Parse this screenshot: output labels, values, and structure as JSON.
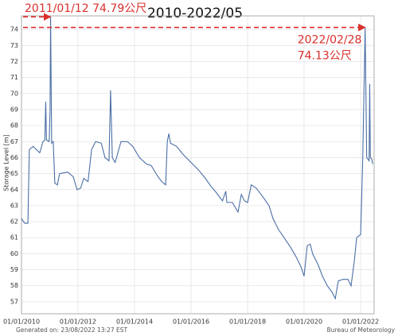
{
  "chart_data": {
    "type": "line",
    "title": "2010-2022/05",
    "ylabel": "Storage Level [m]",
    "note": "Generated on: 23/08/2022 13:27 EST",
    "source": "Bureau of Meteorology",
    "color": "#4a6fa5",
    "grid": true,
    "xlim": [
      "2010-01-01",
      "2022-06-24"
    ],
    "ylim": [
      56.25,
      74.85
    ],
    "yticks": [
      57,
      58,
      59,
      60,
      61,
      62,
      63,
      64,
      65,
      66,
      67,
      68,
      69,
      70,
      71,
      72,
      73,
      74
    ],
    "xticks": [
      {
        "value": "2010-01-01",
        "label": "01/01/2010"
      },
      {
        "value": "2012-01-01",
        "label": "01/01/2012"
      },
      {
        "value": "2014-01-01",
        "label": "01/01/2014"
      },
      {
        "value": "2016-01-01",
        "label": "01/01/2016"
      },
      {
        "value": "2018-01-01",
        "label": "01/01/2018"
      },
      {
        "value": "2020-01-01",
        "label": "01/01/2020"
      },
      {
        "value": "2022-01-01",
        "label": "01/01/2022"
      }
    ],
    "annotations": [
      {
        "lines": [
          "2011/01/12  74.79公尺"
        ],
        "x": "2011-01-12",
        "y": 74.79
      },
      {
        "lines": [
          "2022/02/28",
          "74.13公尺"
        ],
        "x": "2022-02-28",
        "y": 74.13
      }
    ],
    "x": [
      "2010-01-01",
      "2010-02-10",
      "2010-03-25",
      "2010-04-12",
      "2010-06-01",
      "2010-08-25",
      "2010-10-05",
      "2010-10-30",
      "2010-11-10",
      "2010-11-20",
      "2010-12-25",
      "2011-01-05",
      "2011-01-12",
      "2011-01-26",
      "2011-02-15",
      "2011-03-08",
      "2011-04-10",
      "2011-05-08",
      "2011-08-20",
      "2011-11-01",
      "2011-12-20",
      "2012-02-05",
      "2012-03-15",
      "2012-05-10",
      "2012-06-25",
      "2012-08-15",
      "2012-10-28",
      "2012-12-15",
      "2013-02-05",
      "2013-02-25",
      "2013-03-20",
      "2013-04-25",
      "2013-07-10",
      "2013-10-01",
      "2013-12-10",
      "2014-03-05",
      "2014-06-05",
      "2014-08-05",
      "2014-10-18",
      "2014-12-18",
      "2015-02-07",
      "2015-02-28",
      "2015-03-20",
      "2015-04-10",
      "2015-06-28",
      "2015-09-20",
      "2016-01-01",
      "2016-04-12",
      "2016-07-05",
      "2016-09-15",
      "2016-11-25",
      "2017-02-10",
      "2017-03-25",
      "2017-04-08",
      "2017-06-18",
      "2017-08-30",
      "2017-10-12",
      "2017-11-22",
      "2018-01-01",
      "2018-02-18",
      "2018-04-22",
      "2018-07-25",
      "2018-10-05",
      "2018-11-25",
      "2019-02-05",
      "2019-04-18",
      "2019-07-10",
      "2019-09-20",
      "2019-11-20",
      "2020-01-01",
      "2020-02-10",
      "2020-03-20",
      "2020-04-20",
      "2020-07-01",
      "2020-08-25",
      "2020-10-27",
      "2020-12-27",
      "2021-02-07",
      "2021-03-18",
      "2021-05-18",
      "2021-07-20",
      "2021-08-30",
      "2021-10-10",
      "2021-11-10",
      "2022-01-01",
      "2022-01-28",
      "2022-02-28",
      "2022-03-20",
      "2022-04-20",
      "2022-04-28",
      "2022-05-06",
      "2022-05-25",
      "2022-06-05"
    ],
    "values": [
      62.2,
      61.9,
      61.9,
      66.5,
      66.7,
      66.3,
      67,
      67.1,
      69.5,
      67.1,
      67,
      69,
      74.79,
      66.9,
      67,
      64.4,
      64.3,
      65,
      65.1,
      64.8,
      64,
      64.1,
      64.7,
      64.5,
      66.5,
      67,
      66.9,
      66,
      65.8,
      70.2,
      66,
      65.7,
      67,
      67,
      66.7,
      66,
      65.6,
      65.5,
      64.9,
      64.5,
      64.3,
      67,
      67.5,
      66.9,
      66.7,
      66.2,
      65.7,
      65.2,
      64.7,
      64.2,
      63.8,
      63.3,
      63.9,
      63.2,
      63.2,
      62.6,
      63.7,
      63.3,
      63.2,
      64.3,
      64.1,
      63.5,
      63,
      62.2,
      61.5,
      61,
      60.4,
      59.8,
      59.2,
      58.6,
      60.5,
      60.6,
      60,
      59.3,
      58.6,
      58,
      57.6,
      57.2,
      58.3,
      58.4,
      58.4,
      58,
      59.5,
      61,
      61.2,
      66,
      74.13,
      66,
      65.8,
      70.6,
      66,
      65.9,
      65.6
    ]
  }
}
